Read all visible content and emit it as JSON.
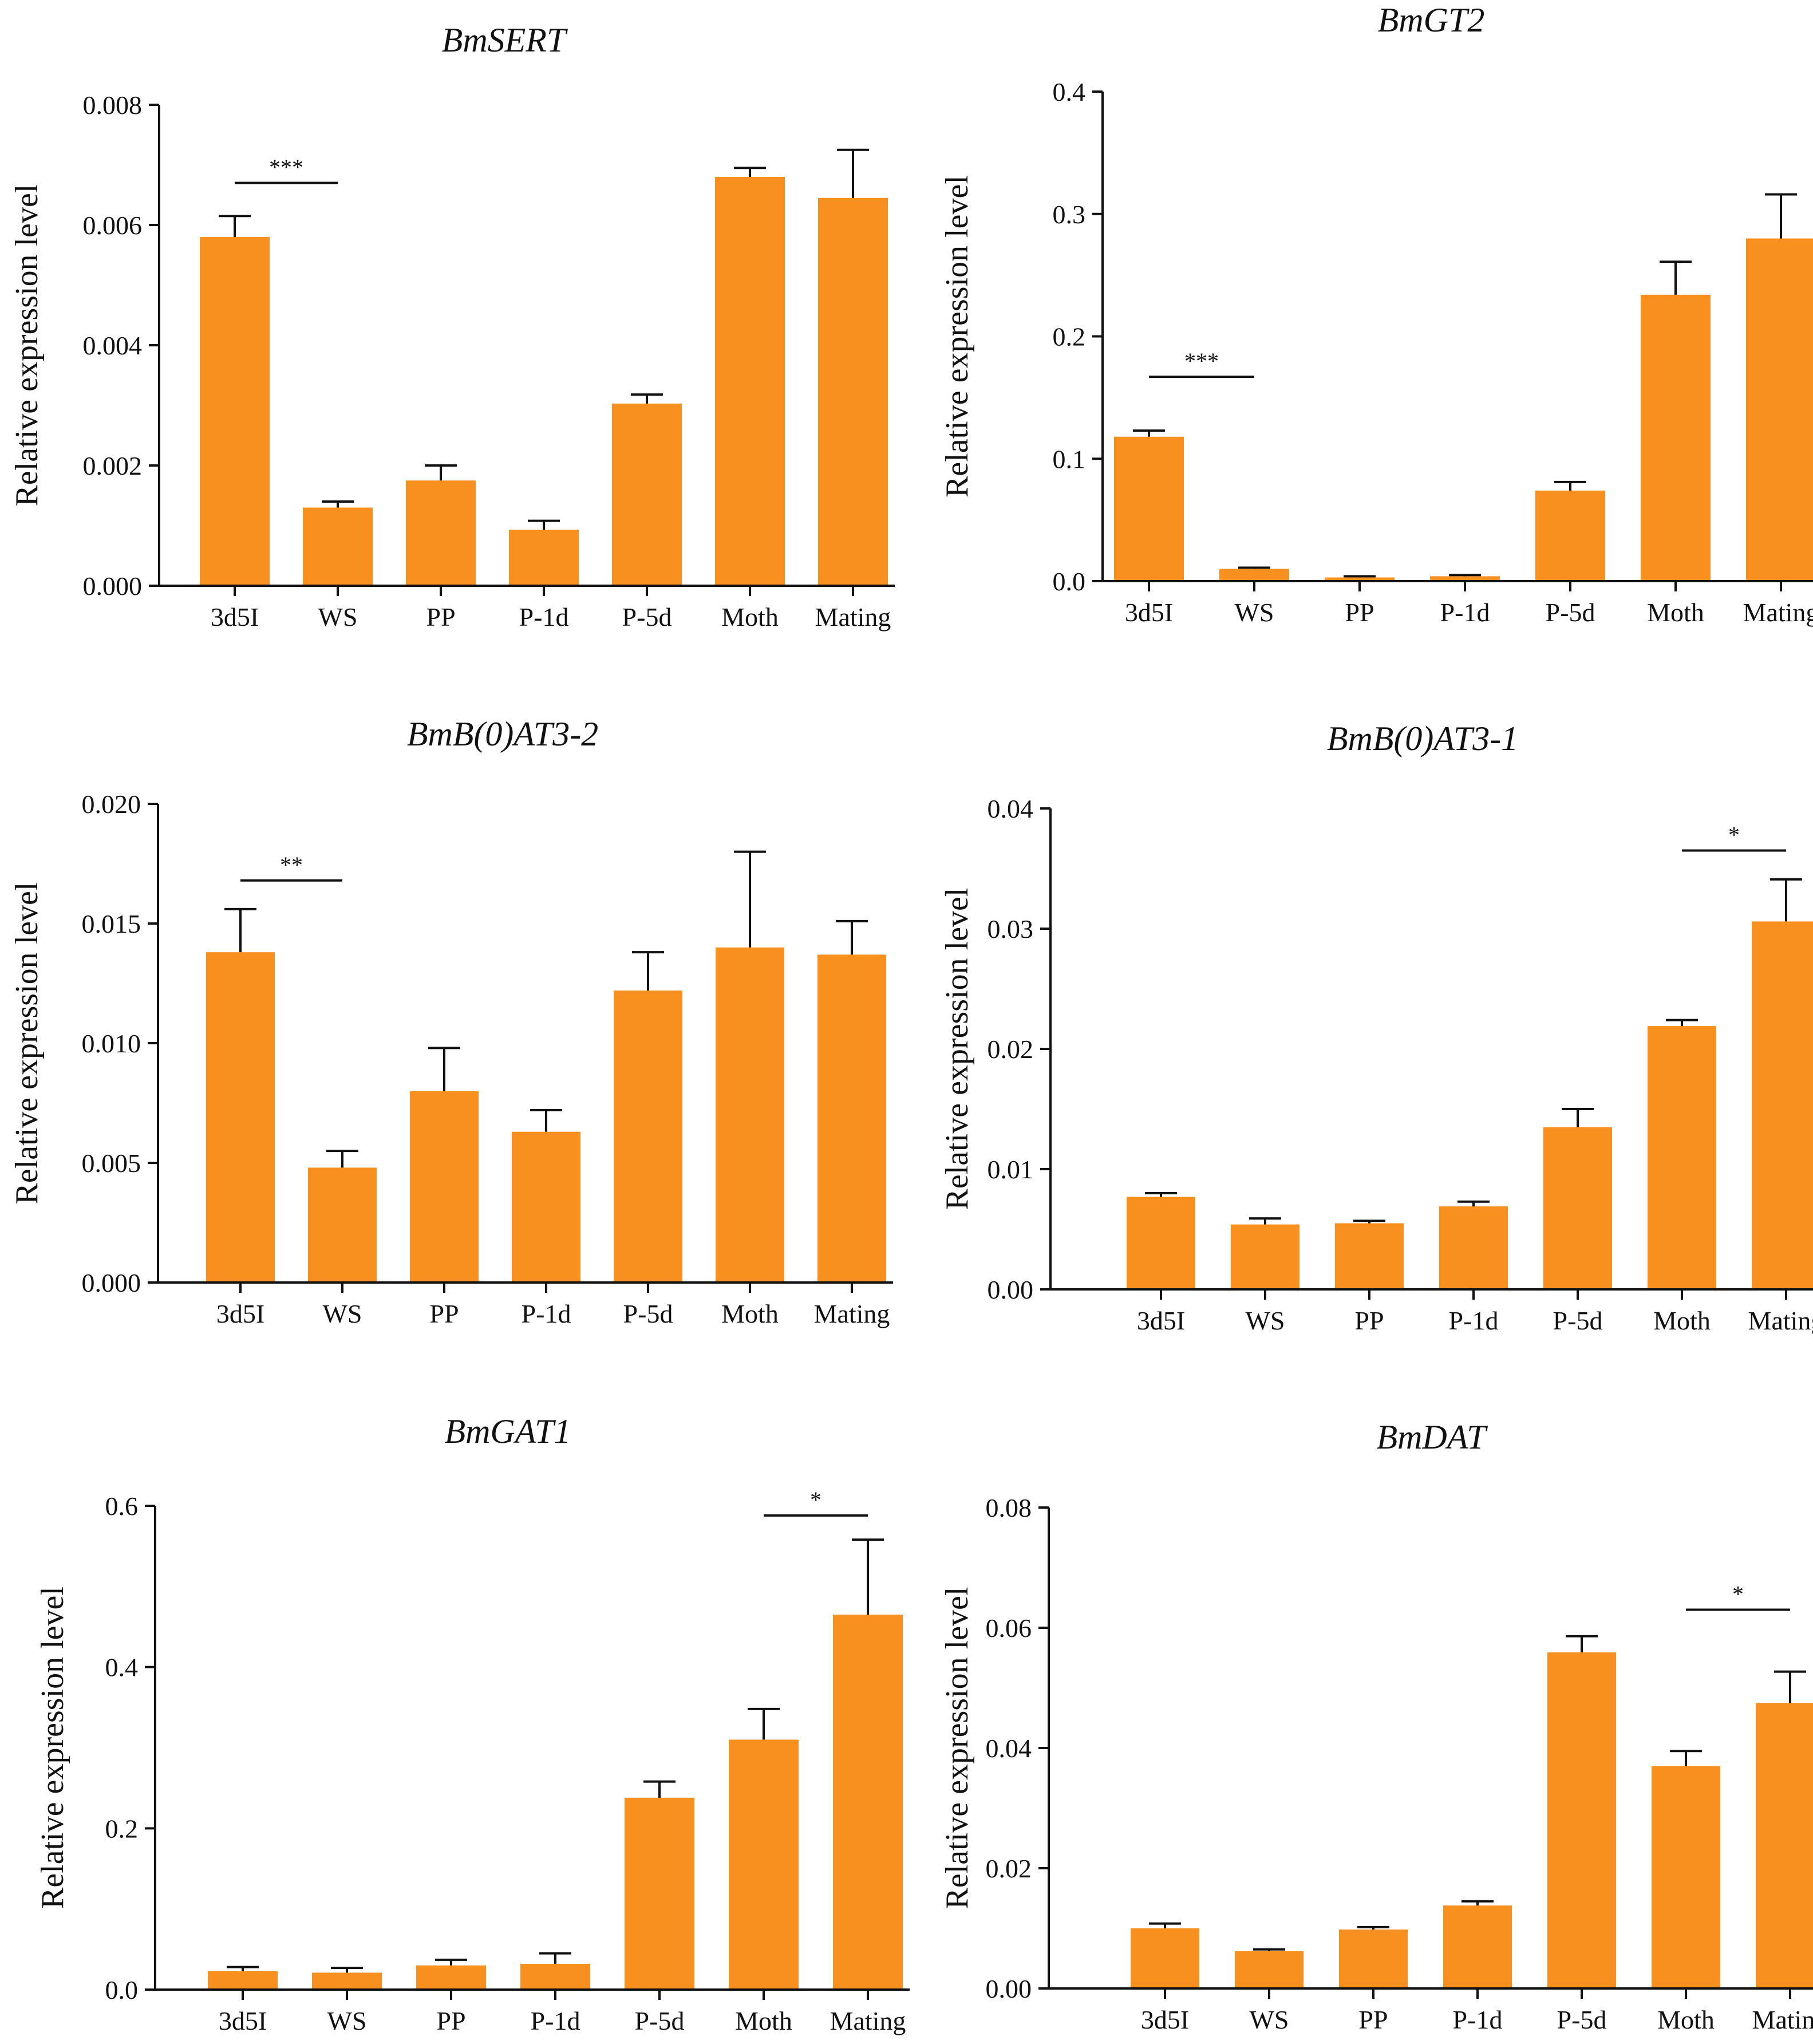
{
  "colors": {
    "bar": "#F7901E",
    "axis": "#111111"
  },
  "chart_data": [
    {
      "type": "bar",
      "title": "BmSERT",
      "xlabel": "",
      "ylabel": "Relative expression level",
      "categories": [
        "3d5I",
        "WS",
        "PP",
        "P-1d",
        "P-5d",
        "Moth",
        "Mating"
      ],
      "values": [
        0.0058,
        0.0013,
        0.00175,
        0.00093,
        0.00303,
        0.0068,
        0.00645
      ],
      "errors": [
        0.00035,
        0.0001,
        0.00025,
        0.00015,
        0.00015,
        0.00015,
        0.0008
      ],
      "ylim": [
        0,
        0.008
      ],
      "ytick_labels": [
        "0.000",
        "0.002",
        "0.004",
        "0.006",
        "0.008"
      ],
      "significance": [
        {
          "from": 0,
          "to": 1,
          "label": "***",
          "y": 0.0067
        }
      ]
    },
    {
      "type": "bar",
      "title": "BmGT2",
      "xlabel": "",
      "ylabel": "Relative expression level",
      "categories": [
        "3d5I",
        "WS",
        "PP",
        "P-1d",
        "P-5d",
        "Moth",
        "Mating"
      ],
      "values": [
        0.118,
        0.01,
        0.003,
        0.004,
        0.074,
        0.234,
        0.28
      ],
      "errors": [
        0.005,
        0.001,
        0.001,
        0.001,
        0.007,
        0.027,
        0.036
      ],
      "ylim": [
        0,
        0.4
      ],
      "ytick_labels": [
        "0.0",
        "0.1",
        "0.2",
        "0.3",
        "0.4"
      ],
      "significance": [
        {
          "from": 0,
          "to": 1,
          "label": "***",
          "y": 0.167
        }
      ]
    },
    {
      "type": "bar",
      "title": "BmB(0)AT3-2",
      "xlabel": "",
      "ylabel": "Relative expression level",
      "categories": [
        "3d5I",
        "WS",
        "PP",
        "P-1d",
        "P-5d",
        "Moth",
        "Mating"
      ],
      "values": [
        0.0138,
        0.0048,
        0.008,
        0.0063,
        0.0122,
        0.014,
        0.0137
      ],
      "errors": [
        0.0018,
        0.0007,
        0.0018,
        0.0009,
        0.0016,
        0.004,
        0.0014
      ],
      "ylim": [
        0,
        0.02
      ],
      "ytick_labels": [
        "0.000",
        "0.005",
        "0.010",
        "0.015",
        "0.020"
      ],
      "significance": [
        {
          "from": 0,
          "to": 1,
          "label": "**",
          "y": 0.0168
        }
      ]
    },
    {
      "type": "bar",
      "title": "BmB(0)AT3-1",
      "xlabel": "",
      "ylabel": "Relative expression level",
      "categories": [
        "3d5I",
        "WS",
        "PP",
        "P-1d",
        "P-5d",
        "Moth",
        "Mating"
      ],
      "values": [
        0.0077,
        0.0054,
        0.0055,
        0.0069,
        0.0135,
        0.0219,
        0.0306
      ],
      "errors": [
        0.0003,
        0.0005,
        0.0002,
        0.0004,
        0.0015,
        0.0005,
        0.0035
      ],
      "ylim": [
        0,
        0.04
      ],
      "ytick_labels": [
        "0.00",
        "0.01",
        "0.02",
        "0.03",
        "0.04"
      ],
      "significance": [
        {
          "from": 5,
          "to": 6,
          "label": "*",
          "y": 0.0365
        }
      ]
    },
    {
      "type": "bar",
      "title": "BmGAT1",
      "xlabel": "",
      "ylabel": "Relative expression level",
      "categories": [
        "3d5I",
        "WS",
        "PP",
        "P-1d",
        "P-5d",
        "Moth",
        "Mating"
      ],
      "values": [
        0.023,
        0.021,
        0.03,
        0.032,
        0.238,
        0.31,
        0.465
      ],
      "errors": [
        0.005,
        0.006,
        0.007,
        0.013,
        0.02,
        0.038,
        0.093
      ],
      "ylim": [
        0,
        0.6
      ],
      "ytick_labels": [
        "0.0",
        "0.2",
        "0.4",
        "0.6"
      ],
      "significance": [
        {
          "from": 5,
          "to": 6,
          "label": "*",
          "y": 0.588
        }
      ]
    },
    {
      "type": "bar",
      "title": "BmDAT",
      "xlabel": "",
      "ylabel": "Relative expression level",
      "categories": [
        "3d5I",
        "WS",
        "PP",
        "P-1d",
        "P-5d",
        "Moth",
        "Mating"
      ],
      "values": [
        0.01,
        0.0062,
        0.0098,
        0.0138,
        0.0559,
        0.037,
        0.0475
      ],
      "errors": [
        0.0008,
        0.0003,
        0.0004,
        0.0007,
        0.0027,
        0.0025,
        0.0052
      ],
      "ylim": [
        0,
        0.08
      ],
      "ytick_labels": [
        "0.00",
        "0.02",
        "0.04",
        "0.06",
        "0.08"
      ],
      "significance": [
        {
          "from": 5,
          "to": 6,
          "label": "*",
          "y": 0.063
        }
      ]
    }
  ]
}
